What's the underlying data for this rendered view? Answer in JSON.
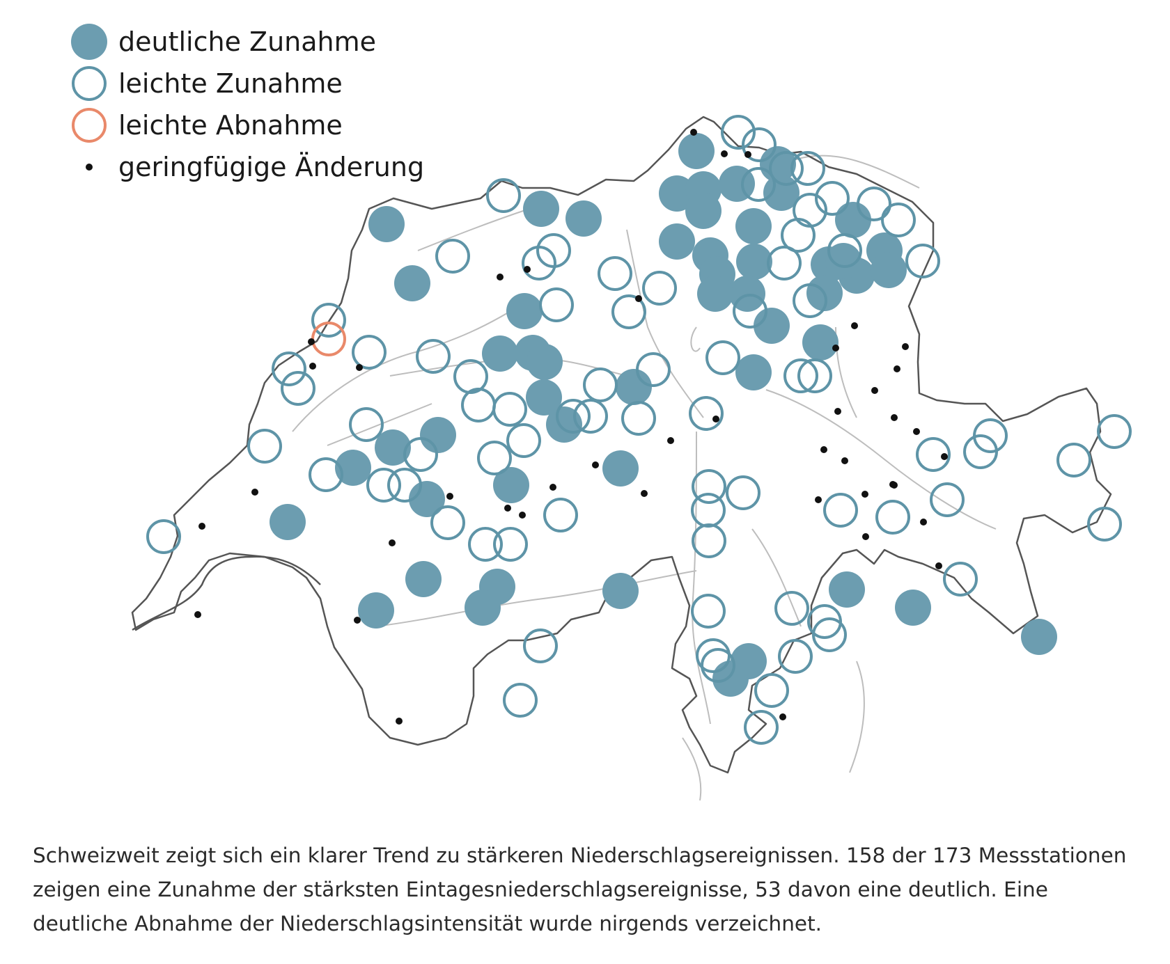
{
  "legend": {
    "items": [
      {
        "symbol": "filled-circle",
        "label": "deutliche Zunahme"
      },
      {
        "symbol": "ring-blue",
        "label": "leichte Zunahme"
      },
      {
        "symbol": "ring-orange",
        "label": "leichte Abnahme"
      },
      {
        "symbol": "dot",
        "label": "geringfügige Änderung"
      }
    ]
  },
  "caption": "Schweizweit zeigt sich ein klarer Trend zu stärkeren Niederschlagsereignissen. 158 der 173 Messstationen zeigen eine Zunahme der stärksten Eintagesniederschlagsereignisse, 53 davon eine deutlich. Eine deutliche Abnahme der Niederschlagsintensität wurde nirgends verzeichnet.",
  "colors": {
    "filled": "#6c9db0",
    "ring": "#5e94a7",
    "orange": "#e9896a",
    "dot": "#111111",
    "border": "#555555",
    "rivers": "#b8b8b8"
  }
}
